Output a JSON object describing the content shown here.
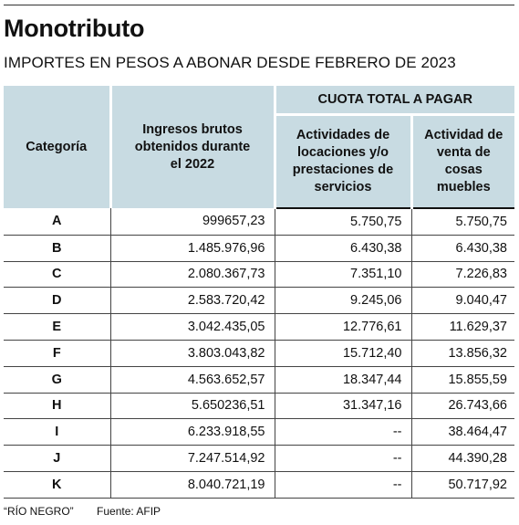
{
  "title": "Monotributo",
  "subtitle": "IMPORTES EN PESOS A ABONAR DESDE FEBRERO DE 2023",
  "table": {
    "headers": {
      "categoria": "Categoría",
      "ingresos": "Ingresos brutos obtenidos durante el 2022",
      "group": "CUOTA TOTAL A PAGAR",
      "servicios": "Actividades de locaciones y/o prestaciones de servicios",
      "muebles": "Actividad de venta de cosas muebles"
    },
    "rows": [
      {
        "cat": "A",
        "ingresos": "999657,23",
        "servicios": "5.750,75",
        "muebles": "5.750,75"
      },
      {
        "cat": "B",
        "ingresos": "1.485.976,96",
        "servicios": "6.430,38",
        "muebles": "6.430,38"
      },
      {
        "cat": "C",
        "ingresos": "2.080.367,73",
        "servicios": "7.351,10",
        "muebles": "7.226,83"
      },
      {
        "cat": "D",
        "ingresos": "2.583.720,42",
        "servicios": "9.245,06",
        "muebles": "9.040,47"
      },
      {
        "cat": "E",
        "ingresos": "3.042.435,05",
        "servicios": "12.776,61",
        "muebles": "11.629,37"
      },
      {
        "cat": "F",
        "ingresos": "3.803.043,82",
        "servicios": "15.712,40",
        "muebles": "13.856,32"
      },
      {
        "cat": "G",
        "ingresos": "4.563.652,57",
        "servicios": "18.347,44",
        "muebles": "15.855,59"
      },
      {
        "cat": "H",
        "ingresos": "5.650236,51",
        "servicios": "31.347,16",
        "muebles": "26.743,66"
      },
      {
        "cat": "I",
        "ingresos": "6.233.918,55",
        "servicios": "--",
        "muebles": "38.464,47"
      },
      {
        "cat": "J",
        "ingresos": "7.247.514,92",
        "servicios": "--",
        "muebles": "44.390,28"
      },
      {
        "cat": "K",
        "ingresos": "8.040.721,19",
        "servicios": "--",
        "muebles": "50.717,92"
      }
    ]
  },
  "footer": {
    "credit": "“RÍO NEGRO”",
    "source": "Fuente: AFIP"
  }
}
